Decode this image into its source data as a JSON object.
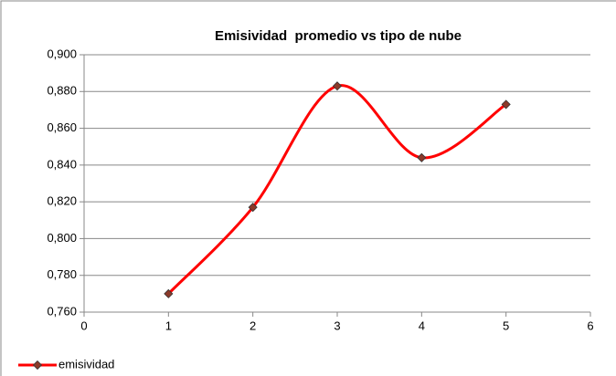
{
  "chart_data": {
    "type": "line",
    "title": "Emisividad  promedio vs tipo de nube",
    "x": [
      1,
      2,
      3,
      4,
      5
    ],
    "series": [
      {
        "name": "emisividad",
        "color": "#ff0000",
        "marker_color": "#8b3a2a",
        "values": [
          0.77,
          0.817,
          0.883,
          0.844,
          0.873
        ]
      }
    ],
    "smooth": true,
    "xlim": [
      0,
      6
    ],
    "xticks": [
      0,
      1,
      2,
      3,
      4,
      5,
      6
    ],
    "ylim": [
      0.76,
      0.9
    ],
    "yticks": [
      {
        "value": 0.76,
        "label": "0,760"
      },
      {
        "value": 0.78,
        "label": "0,780"
      },
      {
        "value": 0.8,
        "label": "0,800"
      },
      {
        "value": 0.82,
        "label": "0,820"
      },
      {
        "value": 0.84,
        "label": "0,840"
      },
      {
        "value": 0.86,
        "label": "0,860"
      },
      {
        "value": 0.88,
        "label": "0,880"
      },
      {
        "value": 0.9,
        "label": "0,900"
      }
    ],
    "grid": true,
    "legend": "bottom-left"
  }
}
